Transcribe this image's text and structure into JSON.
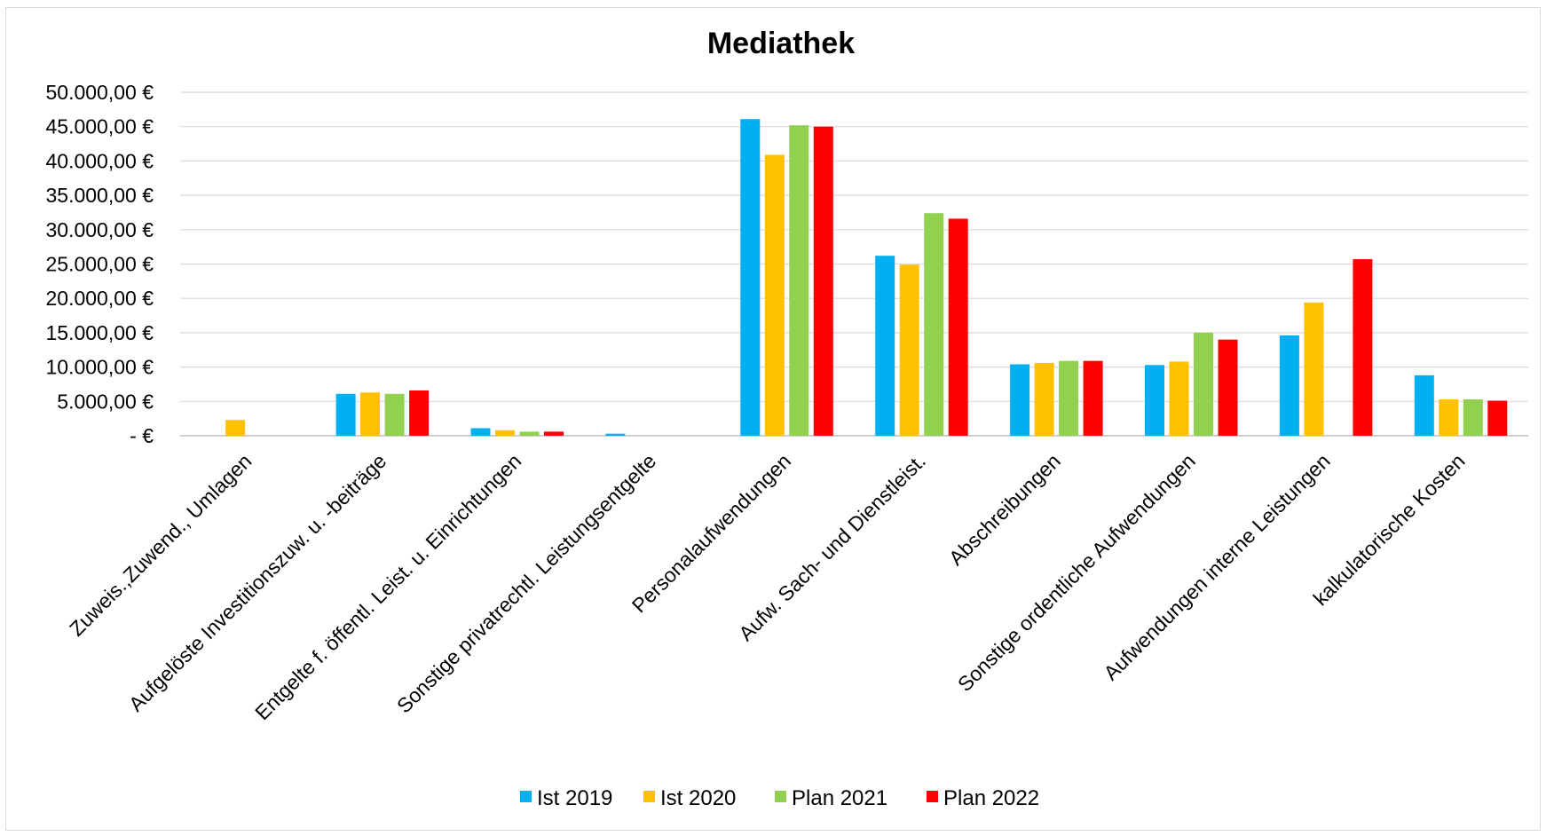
{
  "chart_data": {
    "type": "bar",
    "title": "Mediathek",
    "xlabel": "",
    "ylabel": "",
    "ylim": [
      0,
      50000
    ],
    "y_ticks": [
      {
        "value": 0,
        "label": "-  €"
      },
      {
        "value": 5000,
        "label": "5.000,00 €"
      },
      {
        "value": 10000,
        "label": "10.000,00 €"
      },
      {
        "value": 15000,
        "label": "15.000,00 €"
      },
      {
        "value": 20000,
        "label": "20.000,00 €"
      },
      {
        "value": 25000,
        "label": "25.000,00 €"
      },
      {
        "value": 30000,
        "label": "30.000,00 €"
      },
      {
        "value": 35000,
        "label": "35.000,00 €"
      },
      {
        "value": 40000,
        "label": "40.000,00 €"
      },
      {
        "value": 45000,
        "label": "45.000,00 €"
      },
      {
        "value": 50000,
        "label": "50.000,00 €"
      }
    ],
    "grid": true,
    "legend_position": "bottom",
    "categories": [
      "Zuweis.,Zuwend., Umlagen",
      "Aufgelöste Investitionszuw. u. -beiträge",
      "Entgelte f. öffentl. Leist. u. Einrichtungen",
      "Sonstige privatrechtl. Leistungsentgelte",
      "Personalaufwendungen",
      "Aufw. Sach- und Dienstleist.",
      "Abschreibungen",
      "Sonstige ordentliche Aufwendungen",
      "Aufwendungen interne Leistungen",
      "kalkulatorische Kosten"
    ],
    "series": [
      {
        "name": "Ist 2019",
        "color": "#00b0f0",
        "values": [
          0,
          6100,
          1100,
          300,
          46100,
          26200,
          10400,
          10300,
          14600,
          8800
        ]
      },
      {
        "name": "Ist 2020",
        "color": "#ffc000",
        "values": [
          2300,
          6300,
          800,
          0,
          40900,
          24900,
          10600,
          10800,
          19400,
          5300
        ]
      },
      {
        "name": "Plan 2021",
        "color": "#92d050",
        "values": [
          0,
          6100,
          600,
          0,
          45200,
          32400,
          10900,
          15000,
          0,
          5300
        ]
      },
      {
        "name": "Plan 2022",
        "color": "#ff0000",
        "values": [
          0,
          6600,
          600,
          0,
          45000,
          31600,
          10900,
          14000,
          25700,
          5100
        ]
      }
    ]
  }
}
